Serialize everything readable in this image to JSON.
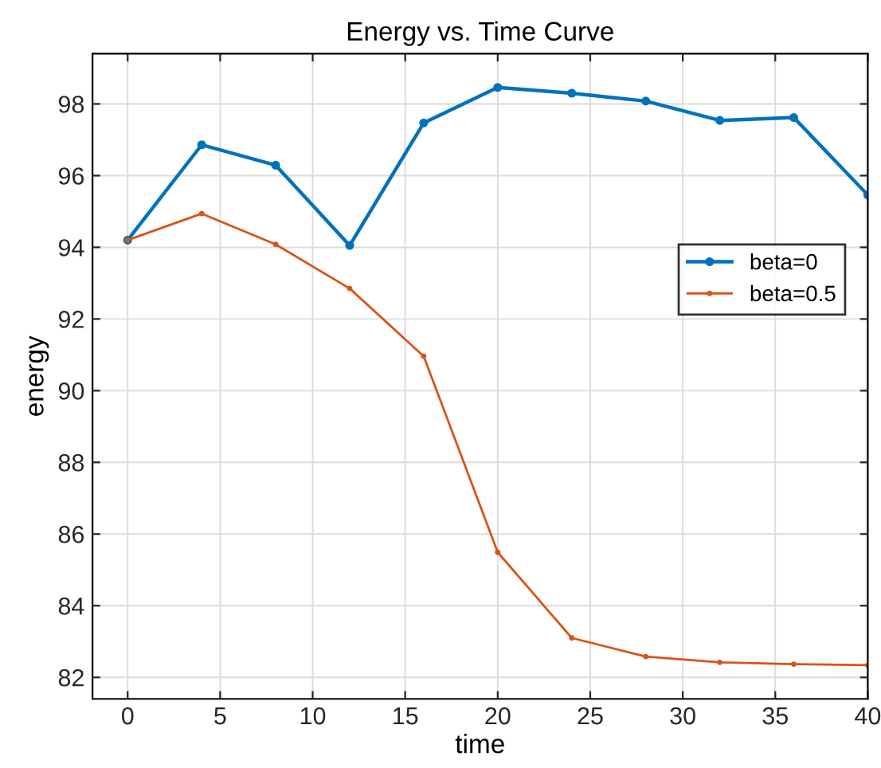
{
  "chart_data": {
    "type": "line",
    "title": "Energy vs. Time Curve",
    "xlabel": "time",
    "ylabel": "energy",
    "x": [
      0,
      4,
      8,
      12,
      16,
      20,
      24,
      28,
      32,
      36,
      40
    ],
    "series": [
      {
        "name": "beta=0",
        "color": "#0072bd",
        "values": [
          94.2,
          96.86,
          96.29,
          94.05,
          97.47,
          98.46,
          98.3,
          98.08,
          97.54,
          97.62,
          95.46
        ]
      },
      {
        "name": "beta=0.5",
        "color": "#d95319",
        "values": [
          94.2,
          94.94,
          94.08,
          92.85,
          90.96,
          85.49,
          83.1,
          82.58,
          82.42,
          82.37,
          82.34
        ]
      }
    ],
    "xlim": [
      -1.9,
      40
    ],
    "ylim": [
      81.4,
      99.4
    ],
    "xticks": [
      0,
      5,
      10,
      15,
      20,
      25,
      30,
      35,
      40
    ],
    "yticks": [
      82,
      84,
      86,
      88,
      90,
      92,
      94,
      96,
      98
    ],
    "grid": true,
    "legend": "right",
    "marker": "circle",
    "line_style": "solid"
  }
}
